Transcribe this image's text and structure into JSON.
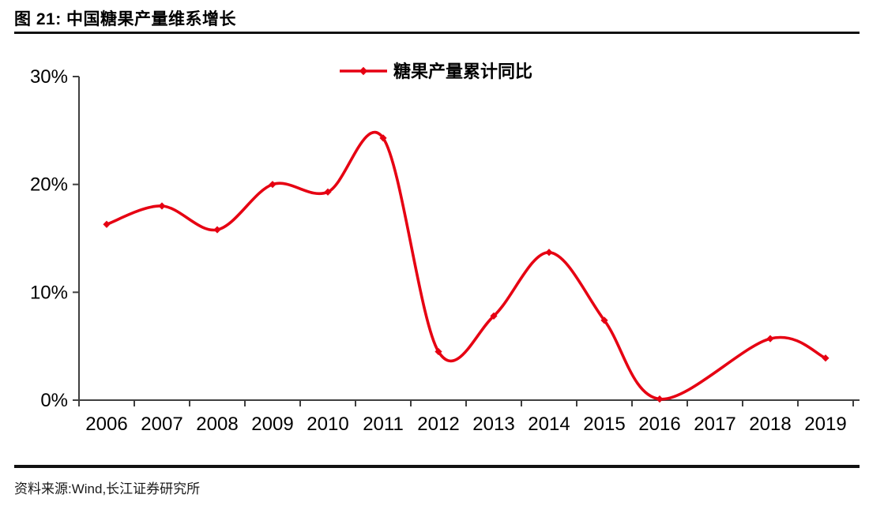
{
  "header": {
    "figure_label": "图  21:",
    "title": "图  21: 中国糖果产量维系增长"
  },
  "footer": {
    "source": "资料来源:Wind,长江证券研究所"
  },
  "colors": {
    "series_red": "#e60012",
    "axis": "#3f3f3f",
    "text": "#000000",
    "rule": "#111111"
  },
  "chart_data": {
    "type": "line",
    "title": "中国糖果产量维系增长",
    "legend": [
      {
        "label": "糖果产量累计同比",
        "color": "#e60012",
        "marker": "diamond"
      }
    ],
    "legend_position": "top-center",
    "smooth": true,
    "grid": false,
    "categories": [
      "2006",
      "2007",
      "2008",
      "2009",
      "2010",
      "2011",
      "2012",
      "2013",
      "2014",
      "2015",
      "2016",
      "2017",
      "2018",
      "2019"
    ],
    "series": [
      {
        "name": "糖果产量累计同比",
        "unit": "%",
        "values": [
          16.3,
          18.0,
          15.8,
          20.0,
          19.3,
          24.3,
          4.5,
          7.8,
          13.7,
          7.4,
          0.1,
          null,
          5.7,
          3.9
        ]
      }
    ],
    "xlabel": "",
    "ylabel": "",
    "ylim": [
      0,
      30
    ],
    "yticks": [
      0,
      10,
      20,
      30
    ],
    "ytick_labels": [
      "0%",
      "10%",
      "20%",
      "30%"
    ]
  }
}
